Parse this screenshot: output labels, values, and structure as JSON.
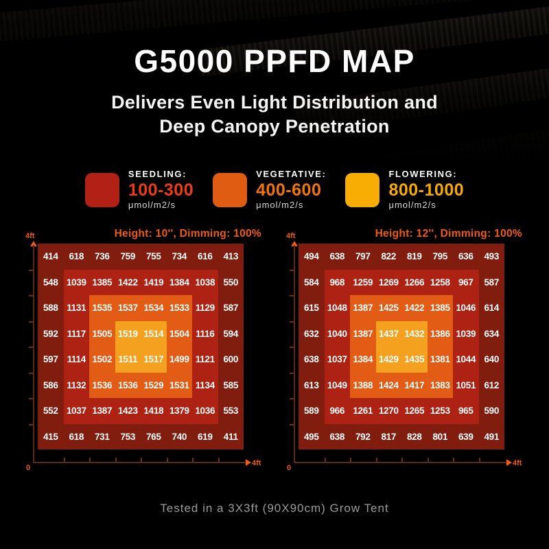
{
  "page": {
    "title": "G5000 PPFD MAP",
    "subtitle_line1": "Delivers Even Light Distribution and",
    "subtitle_line2": "Deep Canopy Penetration",
    "footer": "Tested in a 3X3ft (90X90cm) Grow Tent"
  },
  "legend": {
    "items": [
      {
        "label": "SEEDLING:",
        "range": "100-300",
        "unit": "μmol/m2/s",
        "swatch_color": "#b12115",
        "range_color": "#ee3b16"
      },
      {
        "label": "VEGETATIVE:",
        "range": "400-600",
        "unit": "μmol/m2/s",
        "swatch_color": "#e05c13",
        "range_color": "#f0750d"
      },
      {
        "label": "FLOWERING:",
        "range": "800-1000",
        "unit": "μmol/m2/s",
        "swatch_color": "#f8ad05",
        "range_color": "#f7a907"
      }
    ]
  },
  "colors": {
    "accent": "#f25a0f",
    "axis_line": "#5c2a10",
    "ring": [
      "#801d0f",
      "#ae2213",
      "#e25c15",
      "#f4a120"
    ]
  },
  "chart_data": [
    {
      "type": "heatmap",
      "title": "Height: 10'', Dimming: 100%",
      "unit": "μmol/m2/s",
      "x_axis": {
        "min_label": "0",
        "max_label": "4ft"
      },
      "y_axis": {
        "max_label": "4ft"
      },
      "values": [
        [
          414,
          618,
          736,
          759,
          755,
          734,
          616,
          413
        ],
        [
          548,
          1039,
          1385,
          1422,
          1419,
          1384,
          1038,
          550
        ],
        [
          588,
          1131,
          1535,
          1537,
          1534,
          1533,
          1129,
          587
        ],
        [
          592,
          1117,
          1505,
          1519,
          1514,
          1504,
          1116,
          594
        ],
        [
          597,
          1114,
          1502,
          1511,
          1517,
          1499,
          1121,
          600
        ],
        [
          586,
          1132,
          1536,
          1536,
          1529,
          1531,
          1134,
          585
        ],
        [
          552,
          1037,
          1387,
          1423,
          1418,
          1379,
          1036,
          553
        ],
        [
          415,
          618,
          731,
          753,
          765,
          740,
          619,
          411
        ]
      ]
    },
    {
      "type": "heatmap",
      "title": "Height: 12'', Dimming: 100%",
      "unit": "μmol/m2/s",
      "x_axis": {
        "min_label": "0",
        "max_label": "4ft"
      },
      "y_axis": {
        "max_label": "4ft"
      },
      "values": [
        [
          494,
          638,
          797,
          822,
          819,
          795,
          636,
          493
        ],
        [
          584,
          968,
          1259,
          1269,
          1266,
          1258,
          967,
          587
        ],
        [
          615,
          1048,
          1387,
          1425,
          1422,
          1385,
          1046,
          614
        ],
        [
          632,
          1040,
          1387,
          1437,
          1432,
          1386,
          1039,
          634
        ],
        [
          638,
          1037,
          1384,
          1429,
          1435,
          1381,
          1044,
          640
        ],
        [
          613,
          1049,
          1388,
          1424,
          1417,
          1383,
          1051,
          612
        ],
        [
          589,
          966,
          1261,
          1270,
          1265,
          1253,
          965,
          590
        ],
        [
          495,
          638,
          792,
          817,
          828,
          801,
          639,
          491
        ]
      ]
    }
  ]
}
